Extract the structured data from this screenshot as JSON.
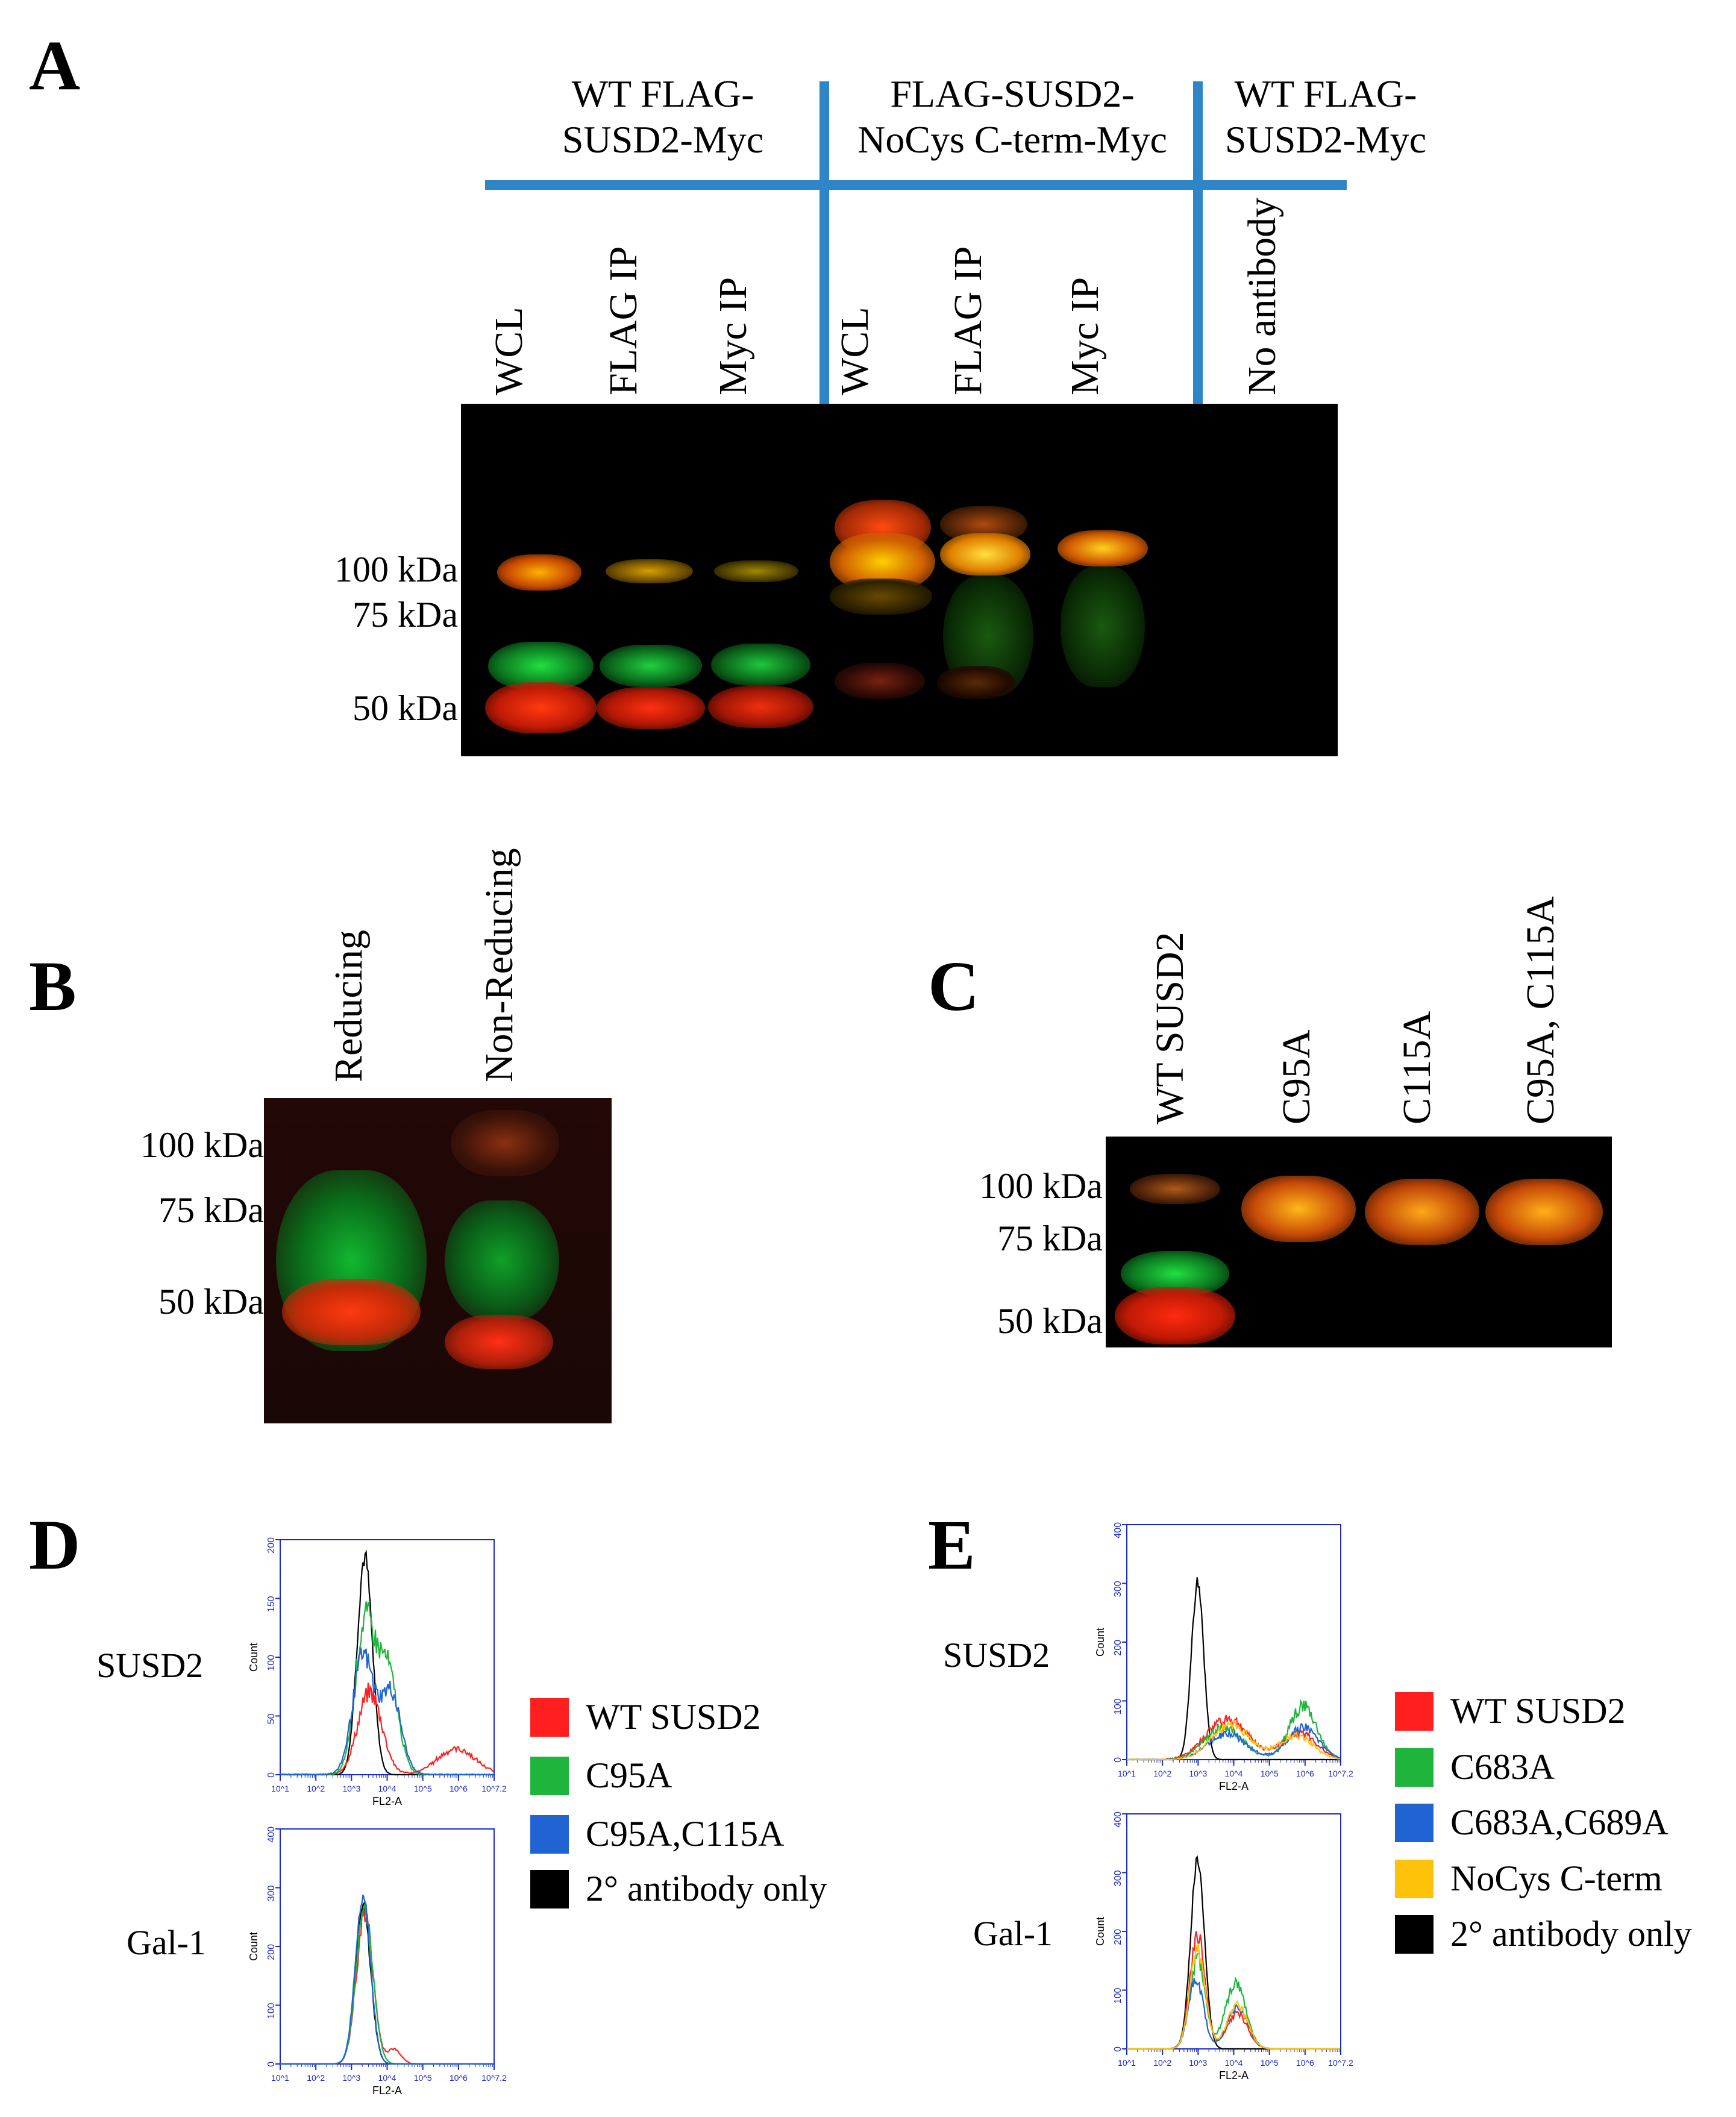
{
  "panels": {
    "A": "A",
    "B": "B",
    "C": "C",
    "D": "D",
    "E": "E"
  },
  "panel_a": {
    "groups": [
      {
        "line1": "WT FLAG-",
        "line2": "SUSD2-Myc"
      },
      {
        "line1": "FLAG-SUSD2-",
        "line2": "NoCys C-term-Myc"
      },
      {
        "line1": "WT FLAG-",
        "line2": "SUSD2-Myc"
      }
    ],
    "lanes": [
      "WCL",
      "FLAG IP",
      "Myc IP",
      "WCL",
      "FLAG IP",
      "Myc IP",
      "No antibody"
    ],
    "markers": [
      "100 kDa",
      "75 kDa",
      "50 kDa"
    ]
  },
  "panel_b": {
    "lanes": [
      "Reducing",
      "Non-Reducing"
    ],
    "markers": [
      "100 kDa",
      "75 kDa",
      "50 kDa"
    ]
  },
  "panel_c": {
    "lanes": [
      "WT SUSD2",
      "C95A",
      "C115A",
      "C95A, C115A"
    ],
    "markers": [
      "100 kDa",
      "75 kDa",
      "50 kDa"
    ]
  },
  "panel_d": {
    "row_labels": [
      "SUSD2",
      "Gal-1"
    ],
    "legend": [
      {
        "label": "WT SUSD2",
        "color": "#ff1f1f"
      },
      {
        "label": "C95A",
        "color": "#1fb43c"
      },
      {
        "label": "C95A,C115A",
        "color": "#1f64d2"
      },
      {
        "label": "2° antibody only",
        "color": "#000000"
      }
    ],
    "xlabel": "FL2-A",
    "ylabel": "Count",
    "top_yticks": [
      "0",
      "50",
      "100",
      "150",
      "200"
    ],
    "bottom_yticks": [
      "0",
      "100",
      "200",
      "300",
      "400"
    ],
    "xticks": [
      "10^1",
      "10^2",
      "10^3",
      "10^4",
      "10^5",
      "10^6",
      "10^7.2"
    ]
  },
  "panel_e": {
    "row_labels": [
      "SUSD2",
      "Gal-1"
    ],
    "legend": [
      {
        "label": "WT SUSD2",
        "color": "#ff1f1f"
      },
      {
        "label": "C683A",
        "color": "#1fb43c"
      },
      {
        "label": "C683A,C689A",
        "color": "#1f64d2"
      },
      {
        "label": "NoCys C-term",
        "color": "#ffc20a"
      },
      {
        "label": "2° antibody only",
        "color": "#000000"
      }
    ],
    "xlabel": "FL2-A",
    "ylabel": "Count",
    "yticks": [
      "0",
      "100",
      "200",
      "300",
      "400"
    ],
    "xticks": [
      "10^1",
      "10^2",
      "10^3",
      "10^4",
      "10^5",
      "10^6",
      "10^7.2"
    ]
  },
  "colors": {
    "divider_blue": "#2e86c8",
    "band_red": "#ff2a10",
    "band_green": "#18c832",
    "band_yellow": "#ffb400"
  }
}
